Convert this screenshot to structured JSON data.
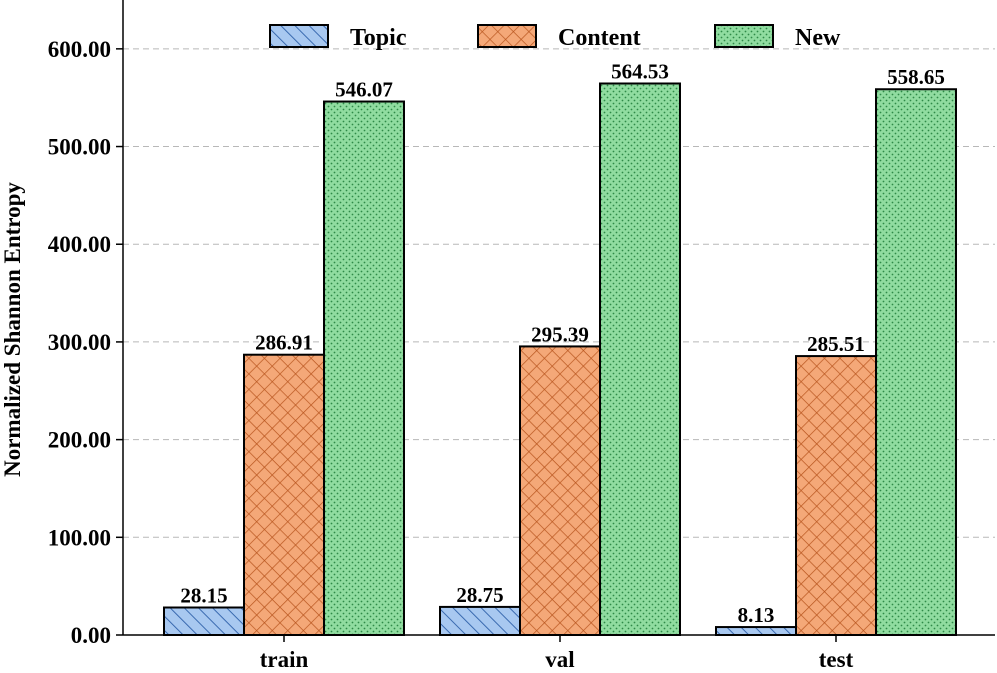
{
  "chart_data": {
    "type": "bar",
    "categories": [
      "train",
      "val",
      "test"
    ],
    "series": [
      {
        "name": "Topic",
        "values": [
          28.15,
          28.75,
          8.13
        ],
        "labels": [
          "28.15",
          "28.75",
          "8.13"
        ],
        "color": "#a8c8f0",
        "pattern": "diagonal-hatch"
      },
      {
        "name": "Content",
        "values": [
          286.91,
          295.39,
          285.51
        ],
        "labels": [
          "286.91",
          "295.39",
          "285.51"
        ],
        "color": "#f4a878",
        "pattern": "cross-hatch"
      },
      {
        "name": "New",
        "values": [
          546.07,
          564.53,
          558.65
        ],
        "labels": [
          "546.07",
          "564.53",
          "558.65"
        ],
        "color": "#90dca0",
        "pattern": "dots"
      }
    ],
    "ylabel": "Normalized Shannon Entropy",
    "xlabel": "",
    "ylim": [
      0,
      650
    ],
    "yticks": [
      0,
      100,
      200,
      300,
      400,
      500,
      600
    ],
    "ytick_labels": [
      "0.00",
      "100.00",
      "200.00",
      "300.00",
      "400.00",
      "500.00",
      "600.00"
    ],
    "grid": true,
    "legend_position": "top-center"
  }
}
